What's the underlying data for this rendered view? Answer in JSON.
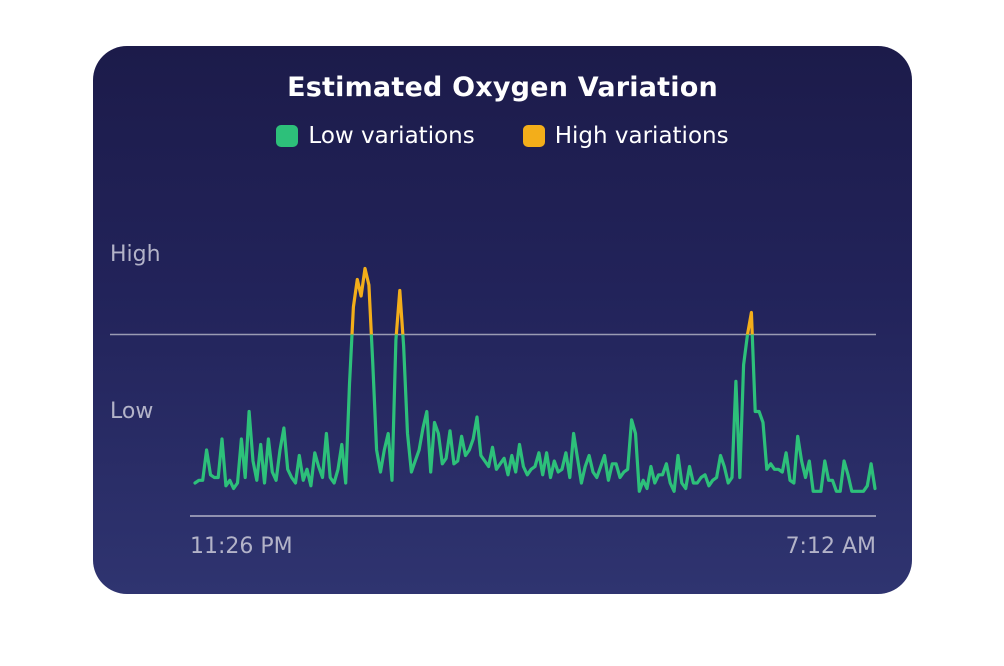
{
  "colors": {
    "low": "#2dc07a",
    "high": "#f3ae1a",
    "axis": "#9a9bb3"
  },
  "chart_data": {
    "type": "line",
    "title": "Estimated Oxygen Variation",
    "legend": [
      {
        "label": "Low variations",
        "color": "#2dc07a"
      },
      {
        "label": "High variations",
        "color": "#f3ae1a"
      }
    ],
    "y_tick_labels": {
      "high": "High",
      "low": "Low"
    },
    "x_tick_labels": {
      "start": "11:26 PM",
      "end": "7:12 AM"
    },
    "ylim": [
      0,
      100
    ],
    "threshold": 66,
    "values": [
      12,
      13,
      13,
      24,
      15,
      14,
      14,
      28,
      11,
      13,
      10,
      12,
      28,
      14,
      38,
      20,
      13,
      26,
      12,
      28,
      16,
      13,
      24,
      32,
      17,
      14,
      12,
      22,
      13,
      17,
      11,
      23,
      18,
      14,
      30,
      14,
      12,
      17,
      26,
      12,
      48,
      76,
      86,
      80,
      90,
      84,
      56,
      24,
      16,
      24,
      30,
      13,
      64,
      82,
      62,
      30,
      16,
      20,
      24,
      32,
      38,
      16,
      34,
      30,
      19,
      21,
      31,
      19,
      20,
      29,
      22,
      24,
      28,
      36,
      22,
      20,
      18,
      25,
      17,
      19,
      21,
      15,
      22,
      16,
      26,
      18,
      15,
      17,
      18,
      23,
      15,
      23,
      14,
      20,
      16,
      17,
      23,
      14,
      30,
      21,
      12,
      18,
      22,
      16,
      14,
      18,
      22,
      13,
      19,
      19,
      14,
      16,
      17,
      35,
      30,
      9,
      13,
      10,
      18,
      12,
      15,
      15,
      19,
      12,
      9,
      22,
      12,
      10,
      18,
      12,
      12,
      14,
      15,
      11,
      13,
      14,
      22,
      18,
      12,
      14,
      49,
      14,
      55,
      66,
      74,
      38,
      38,
      34,
      17,
      19,
      17,
      17,
      16,
      23,
      13,
      12,
      29,
      20,
      14,
      20,
      9,
      9,
      9,
      20,
      13,
      13,
      9,
      9,
      20,
      15,
      9,
      9,
      9,
      9,
      11,
      19,
      10
    ]
  }
}
